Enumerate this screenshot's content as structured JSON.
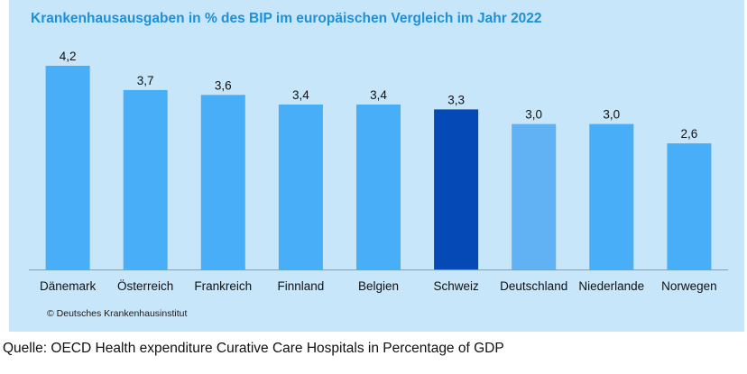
{
  "chart_data": {
    "type": "bar",
    "title": "Krankenhausausgaben in % des BIP im europäischen Vergleich im Jahr 2022",
    "categories": [
      "Dänemark",
      "Österreich",
      "Frankreich",
      "Finnland",
      "Belgien",
      "Schweiz",
      "Deutschland",
      "Niederlande",
      "Norwegen"
    ],
    "values": [
      4.2,
      3.7,
      3.6,
      3.4,
      3.4,
      3.3,
      3.0,
      3.0,
      2.6
    ],
    "value_labels": [
      "4,2",
      "3,7",
      "3,6",
      "3,4",
      "3,4",
      "3,3",
      "3,0",
      "3,0",
      "2,6"
    ],
    "ylim": [
      0,
      4.2
    ],
    "grid": false,
    "legend": "none",
    "colors": {
      "default": "#47aef7",
      "highlight": "#0449b5",
      "secondary": "#61b1f5",
      "background": "#c8e6fa",
      "axis": "#999999"
    },
    "highlight_categories": [
      "Schweiz"
    ],
    "secondary_categories": [
      "Deutschland"
    ]
  },
  "copyright": "© Deutsches Krankenhausinstitut",
  "source": "Quelle: OECD Health expenditure Curative Care Hospitals in Percentage of GDP"
}
